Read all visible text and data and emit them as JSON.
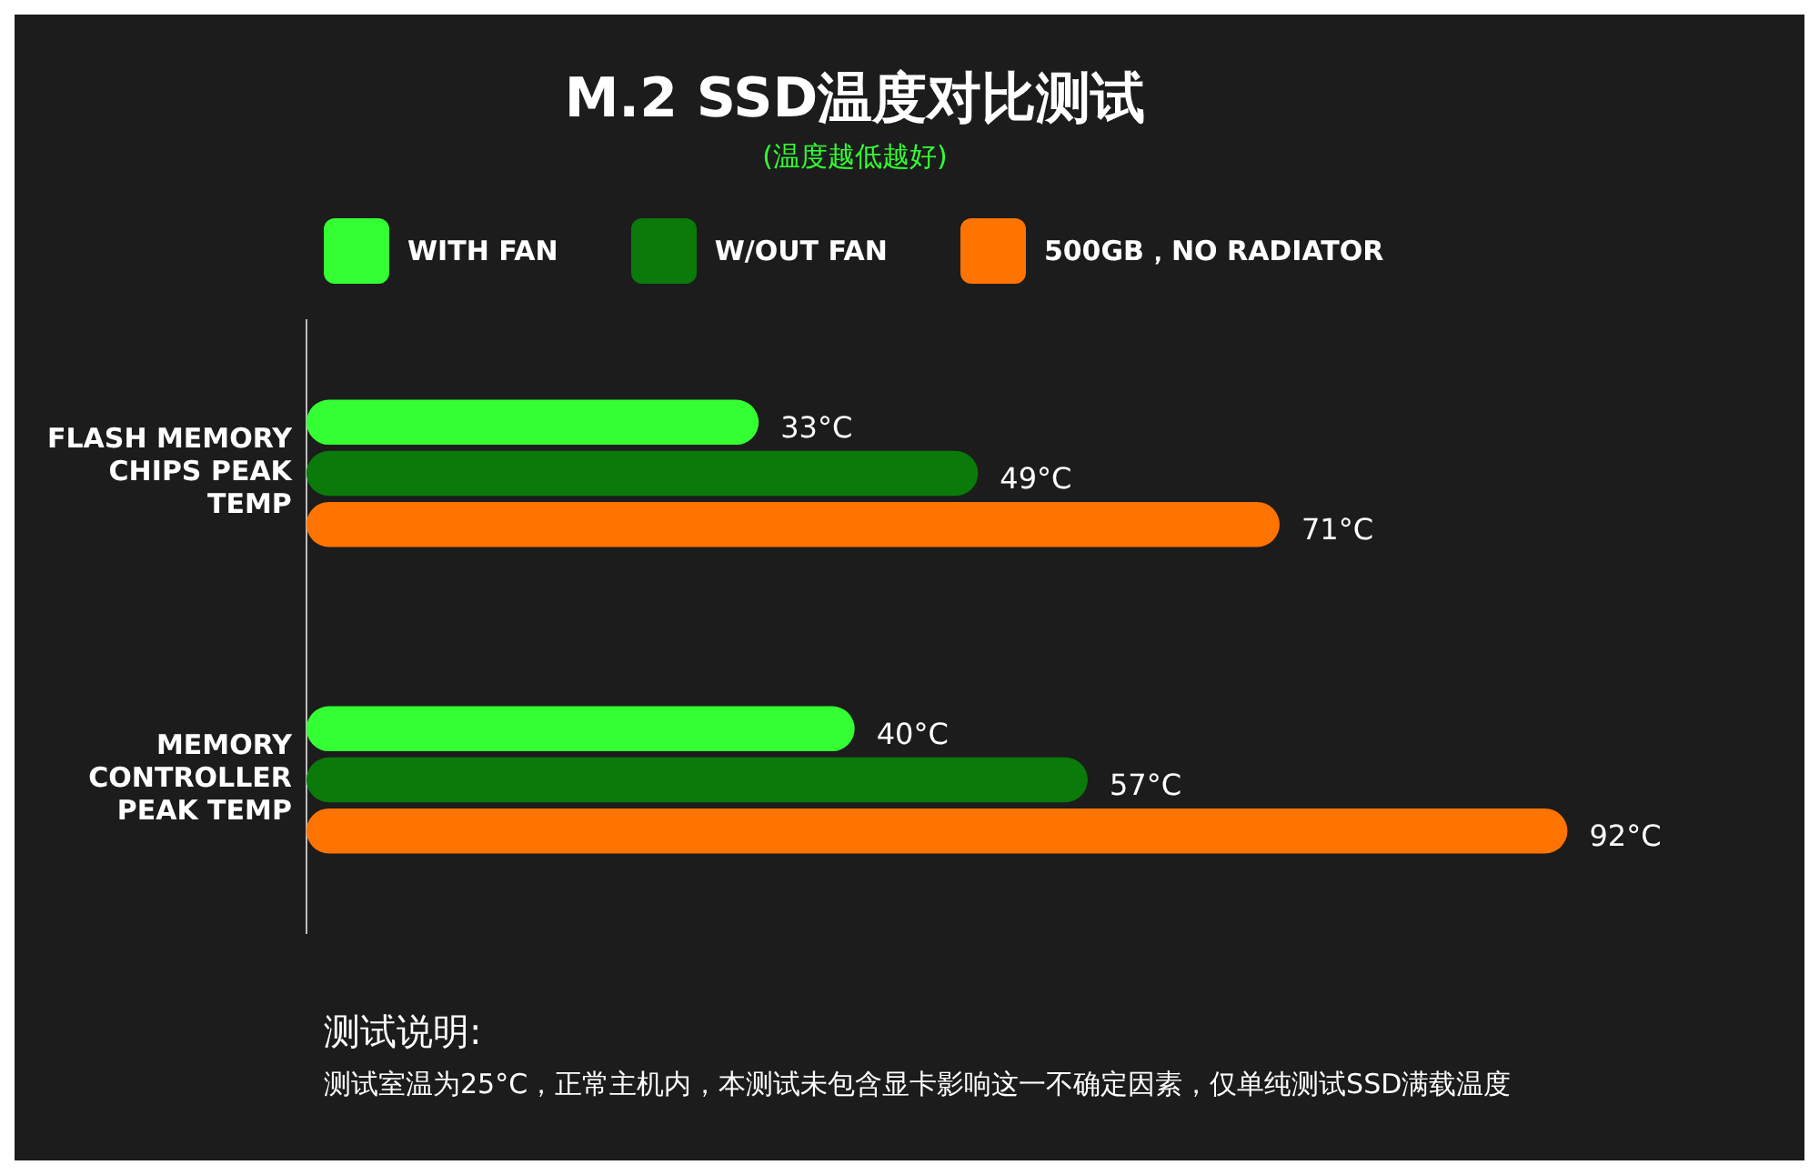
{
  "chart_data": {
    "type": "bar",
    "orientation": "horizontal",
    "title": "M.2 SSD温度对比测试",
    "subtitle": "(温度越低越好)",
    "categories": [
      "FLASH MEMORY CHIPS PEAK TEMP",
      "MEMORY CONTROLLER PEAK TEMP"
    ],
    "series": [
      {
        "name": "WITH FAN",
        "color": "#33ff33",
        "values": [
          33,
          40
        ],
        "value_labels": [
          "33°C",
          "40°C"
        ]
      },
      {
        "name": "W/OUT FAN",
        "color": "#0a7a0a",
        "values": [
          49,
          57
        ],
        "value_labels": [
          "49°C",
          "57°C"
        ]
      },
      {
        "name": "500GB，NO RADIATOR",
        "color": "#ff7300",
        "values": [
          71,
          92
        ],
        "value_labels": [
          "71°C",
          "92°C"
        ]
      }
    ],
    "legend": "top",
    "tick_labels": "y",
    "annotations": [
      "测试说明:",
      "测试室温为25°C，正常主机内，本测试未包含显卡影响这一不确定因素，仅单纯测试SSD满载温度"
    ]
  }
}
